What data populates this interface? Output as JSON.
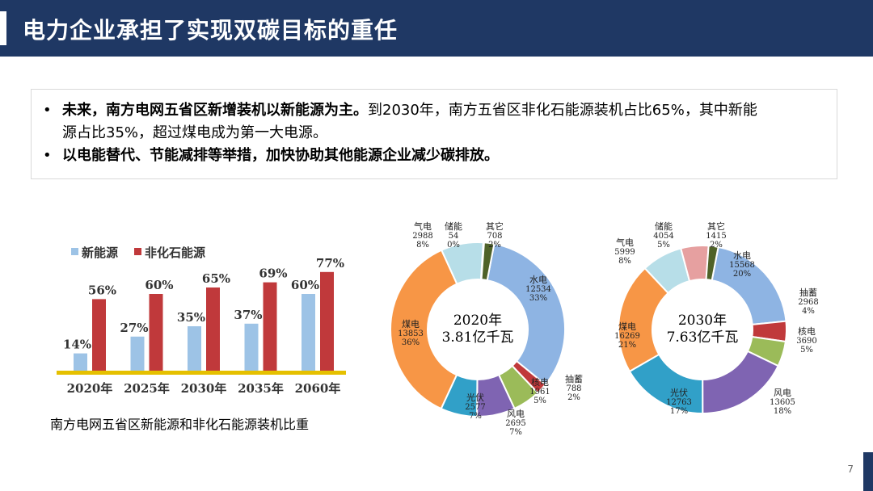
{
  "header": {
    "title": "电力企业承担了实现双碳目标的重任"
  },
  "bullets": {
    "line1_bold": "未来，南方电网五省区新增装机以新能源为主。",
    "line1_rest": "到2030年，南方五省区非化石能源装机占比65%，其中新能",
    "line2": "源占比35%，超过煤电成为第一大电源。",
    "line3_bold": "以电能替代、节能减排等举措，加快协助其他能源企业减少碳排放。"
  },
  "page_number": "7",
  "chart_data": [
    {
      "type": "bar",
      "caption": "南方电网五省区新能源和非化石能源装机比重",
      "categories": [
        "2020年",
        "2025年",
        "2030年",
        "2035年",
        "2060年"
      ],
      "series": [
        {
          "name": "新能源",
          "values": [
            14,
            27,
            35,
            37,
            60
          ],
          "labels": [
            "14%",
            "27%",
            "35%",
            "37%",
            "60%"
          ],
          "color": "#9dc3e6"
        },
        {
          "name": "非化石能源",
          "values": [
            56,
            60,
            65,
            69,
            77
          ],
          "labels": [
            "56%",
            "60%",
            "65%",
            "69%",
            "77%"
          ],
          "color": "#c0393b"
        }
      ],
      "ylim": [
        0,
        80
      ],
      "legend": "top-left",
      "grid": false
    },
    {
      "type": "pie",
      "center_line1": "2020年",
      "center_line2": "3.81亿千瓦",
      "slices": [
        {
          "name": "水电",
          "value": 12534,
          "value_label": "12534",
          "pct": "33%",
          "color": "#8eb4e3"
        },
        {
          "name": "抽蓄",
          "value": 788,
          "value_label": "788",
          "pct": "2%",
          "color": "#c0393b"
        },
        {
          "name": "核电",
          "value": 1961,
          "value_label": "1961",
          "pct": "5%",
          "color": "#9bbb59"
        },
        {
          "name": "风电",
          "value": 2695,
          "value_label": "2695",
          "pct": "7%",
          "color": "#7f64b2"
        },
        {
          "name": "光伏",
          "value": 2577,
          "value_label": "2577",
          "pct": "7%",
          "color": "#31a0c8"
        },
        {
          "name": "煤电",
          "value": 13853,
          "value_label": "13853",
          "pct": "36%",
          "color": "#f79646"
        },
        {
          "name": "气电",
          "value": 2988,
          "value_label": "2988",
          "pct": "8%",
          "color": "#b7dee8"
        },
        {
          "name": "储能",
          "value": 54,
          "value_label": "54",
          "pct": "0%",
          "color": "#e6a0a0"
        },
        {
          "name": "其它",
          "value": 708,
          "value_label": "708",
          "pct": "2%",
          "color": "#4f6228"
        }
      ]
    },
    {
      "type": "pie",
      "center_line1": "2030年",
      "center_line2": "7.63亿千瓦",
      "slices": [
        {
          "name": "水电",
          "value": 15568,
          "value_label": "15568",
          "pct": "20%",
          "color": "#8eb4e3"
        },
        {
          "name": "抽蓄",
          "value": 2968,
          "value_label": "2968",
          "pct": "4%",
          "color": "#c0393b"
        },
        {
          "name": "核电",
          "value": 3690,
          "value_label": "3690",
          "pct": "5%",
          "color": "#9bbb59"
        },
        {
          "name": "风电",
          "value": 13605,
          "value_label": "13605",
          "pct": "18%",
          "color": "#7f64b2"
        },
        {
          "name": "光伏",
          "value": 12763,
          "value_label": "12763",
          "pct": "17%",
          "color": "#31a0c8"
        },
        {
          "name": "煤电",
          "value": 16269,
          "value_label": "16269",
          "pct": "21%",
          "color": "#f79646"
        },
        {
          "name": "气电",
          "value": 5999,
          "value_label": "5999",
          "pct": "8%",
          "color": "#b7dee8"
        },
        {
          "name": "储能",
          "value": 4054,
          "value_label": "4054",
          "pct": "5%",
          "color": "#e6a0a0"
        },
        {
          "name": "其它",
          "value": 1415,
          "value_label": "1415",
          "pct": "2%",
          "color": "#4f6228"
        }
      ]
    }
  ]
}
